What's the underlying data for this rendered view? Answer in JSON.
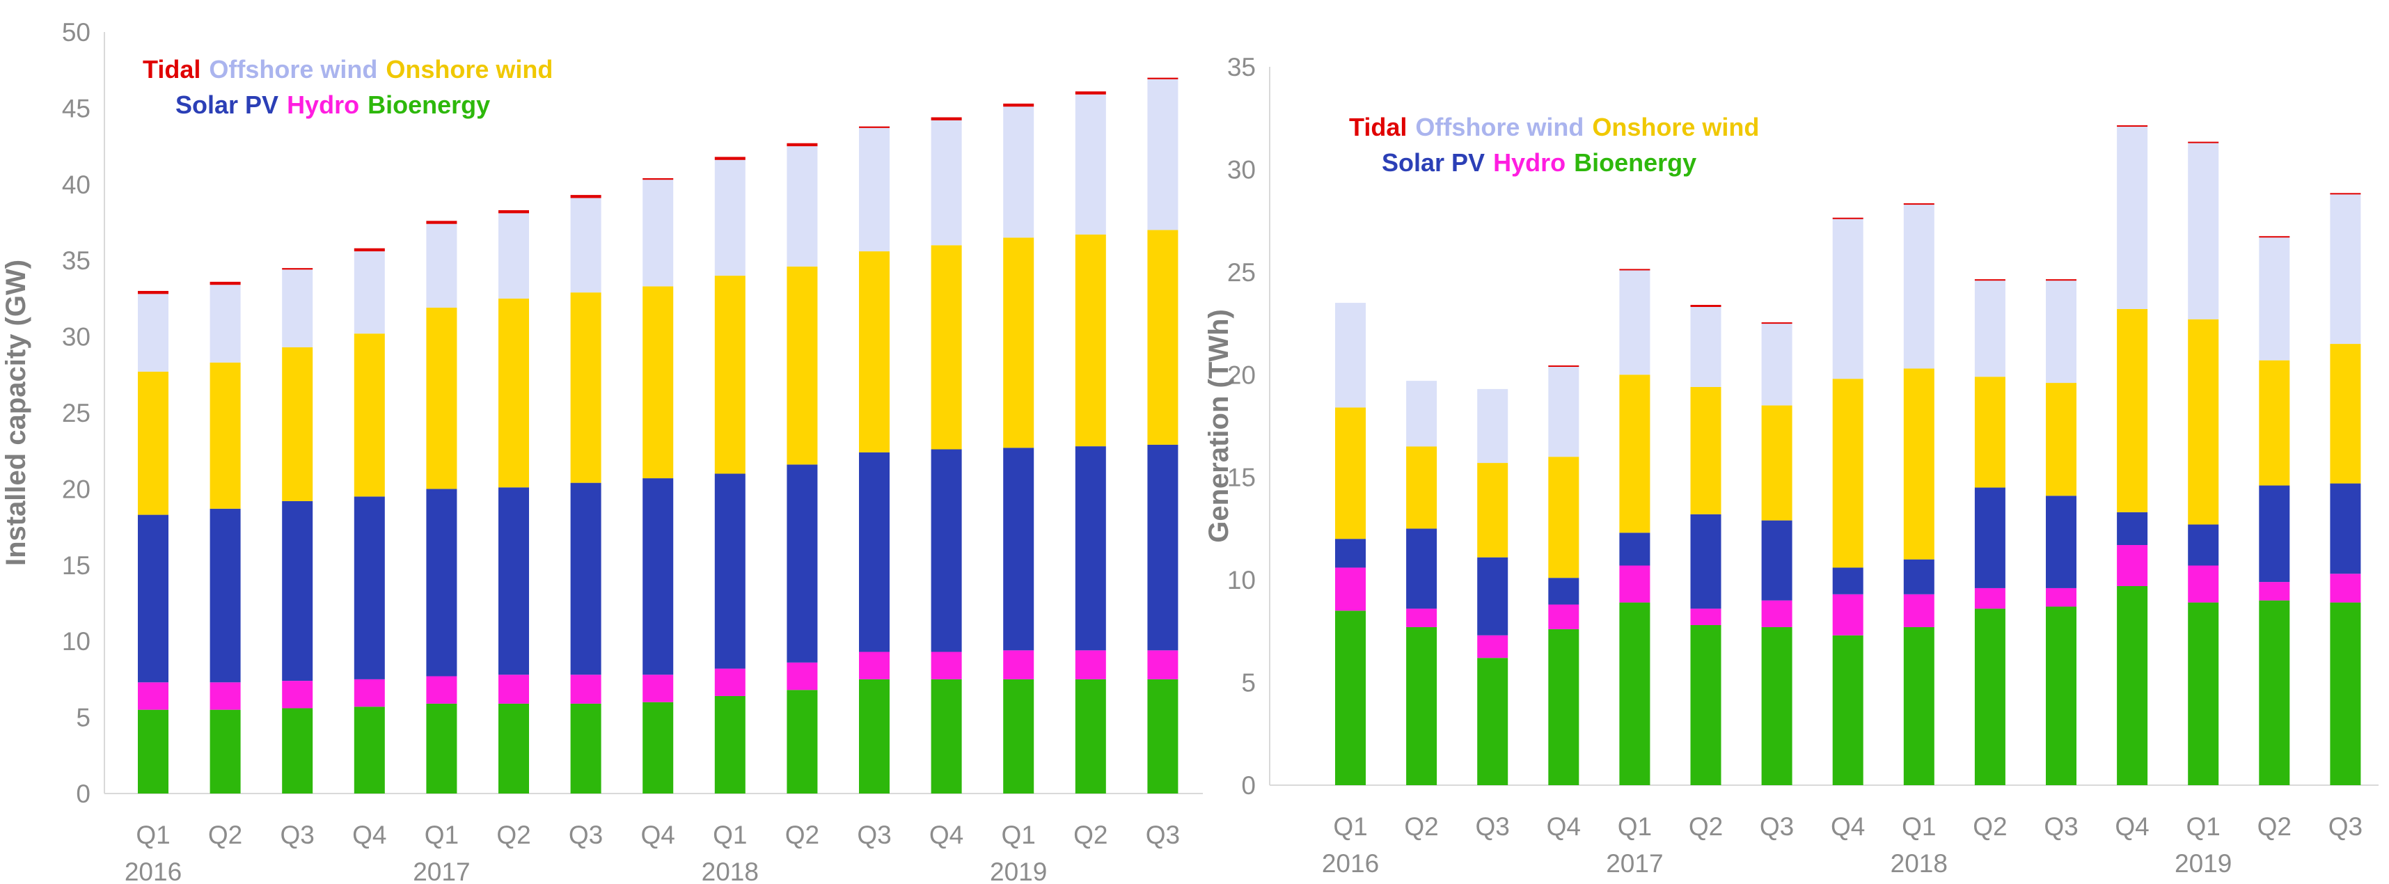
{
  "chart_data": [
    {
      "type": "bar",
      "stacked": true,
      "title": "",
      "xlabel": "",
      "ylabel": "Installed capacity (GW)",
      "ylim": [
        0,
        50
      ],
      "yticks": [
        0,
        5,
        10,
        15,
        20,
        25,
        30,
        35,
        40,
        45,
        50
      ],
      "grid": false,
      "legend_position": "top-left",
      "categories": [
        "Q1",
        "Q2",
        "Q3",
        "Q4",
        "Q1",
        "Q2",
        "Q3",
        "Q4",
        "Q1",
        "Q2",
        "Q3",
        "Q4",
        "Q1",
        "Q2",
        "Q3"
      ],
      "years": [
        {
          "label": "2016",
          "index": 0
        },
        {
          "label": "2017",
          "index": 4
        },
        {
          "label": "2018",
          "index": 8
        },
        {
          "label": "2019",
          "index": 12
        }
      ],
      "series": [
        {
          "name": "Bioenergy",
          "color": "#2db80b",
          "values": [
            5.5,
            5.5,
            5.6,
            5.7,
            5.9,
            5.9,
            5.9,
            6.0,
            6.4,
            6.8,
            7.5,
            7.5,
            7.5,
            7.5,
            7.5
          ]
        },
        {
          "name": "Hydro",
          "color": "#ff1de0",
          "values": [
            1.8,
            1.8,
            1.8,
            1.8,
            1.8,
            1.9,
            1.9,
            1.8,
            1.8,
            1.8,
            1.8,
            1.8,
            1.9,
            1.9,
            1.9
          ]
        },
        {
          "name": "Solar PV",
          "color": "#2b3fb6",
          "values": [
            11.0,
            11.4,
            11.8,
            12.0,
            12.3,
            12.3,
            12.6,
            12.9,
            12.8,
            13.0,
            13.1,
            13.3,
            13.3,
            13.4,
            13.5
          ]
        },
        {
          "name": "Onshore wind",
          "color": "#ffd500",
          "values": [
            9.4,
            9.6,
            10.1,
            10.7,
            11.9,
            12.4,
            12.5,
            12.6,
            13.0,
            13.0,
            13.2,
            13.4,
            13.8,
            13.9,
            14.1
          ]
        },
        {
          "name": "Offshore wind",
          "color": "#dae0f8",
          "values": [
            5.1,
            5.1,
            5.1,
            5.4,
            5.5,
            5.6,
            6.2,
            7.0,
            7.6,
            7.9,
            8.1,
            8.2,
            8.6,
            9.2,
            9.9
          ]
        },
        {
          "name": "Tidal",
          "color": "#e00000",
          "values": [
            0.2,
            0.2,
            0.1,
            0.2,
            0.2,
            0.2,
            0.2,
            0.1,
            0.2,
            0.2,
            0.1,
            0.2,
            0.2,
            0.2,
            0.1
          ]
        }
      ]
    },
    {
      "type": "bar",
      "stacked": true,
      "title": "",
      "xlabel": "",
      "ylabel": "Generation (TWh)",
      "ylim": [
        0,
        35
      ],
      "yticks": [
        0,
        5,
        10,
        15,
        20,
        25,
        30,
        35
      ],
      "grid": false,
      "legend_position": "top-left",
      "categories": [
        "Q1",
        "Q2",
        "Q3",
        "Q4",
        "Q1",
        "Q2",
        "Q3",
        "Q4",
        "Q1",
        "Q2",
        "Q3",
        "Q4",
        "Q1",
        "Q2",
        "Q3"
      ],
      "years": [
        {
          "label": "2016",
          "index": 0
        },
        {
          "label": "2017",
          "index": 4
        },
        {
          "label": "2018",
          "index": 8
        },
        {
          "label": "2019",
          "index": 12
        }
      ],
      "series": [
        {
          "name": "Bioenergy",
          "color": "#2db80b",
          "values": [
            8.5,
            7.7,
            6.2,
            7.6,
            8.9,
            7.8,
            7.7,
            7.3,
            7.7,
            8.6,
            8.7,
            9.7,
            8.9,
            9.0,
            8.9
          ]
        },
        {
          "name": "Hydro",
          "color": "#ff1de0",
          "values": [
            2.1,
            0.9,
            1.1,
            1.2,
            1.8,
            0.8,
            1.3,
            2.0,
            1.6,
            1.0,
            0.9,
            2.0,
            1.8,
            0.9,
            1.4
          ]
        },
        {
          "name": "Solar PV",
          "color": "#2b3fb6",
          "values": [
            1.4,
            3.9,
            3.8,
            1.3,
            1.6,
            4.6,
            3.9,
            1.3,
            1.7,
            4.9,
            4.5,
            1.6,
            2.0,
            4.7,
            4.4
          ]
        },
        {
          "name": "Onshore wind",
          "color": "#ffd500",
          "values": [
            6.4,
            4.0,
            4.6,
            5.9,
            7.7,
            6.2,
            5.6,
            9.2,
            9.3,
            5.4,
            5.5,
            9.9,
            10.0,
            6.1,
            6.8
          ]
        },
        {
          "name": "Offshore wind",
          "color": "#dae0f8",
          "values": [
            5.1,
            3.2,
            3.6,
            4.4,
            5.1,
            3.9,
            4.0,
            7.8,
            8.0,
            4.7,
            5.0,
            8.9,
            8.6,
            6.0,
            7.3
          ]
        },
        {
          "name": "Tidal",
          "color": "#e00000",
          "values": [
            0.0,
            0.0,
            0.0,
            0.05,
            0.05,
            0.1,
            0.05,
            0.05,
            0.05,
            0.05,
            0.05,
            0.05,
            0.05,
            0.05,
            0.05
          ]
        }
      ]
    }
  ],
  "legends": [
    {
      "row1": [
        {
          "label": "Tidal",
          "color": "#e00000"
        },
        {
          "label": "Offshore wind",
          "color": "#aab4ee"
        },
        {
          "label": "Onshore wind",
          "color": "#f0c800"
        }
      ],
      "row2": [
        {
          "label": "Solar PV",
          "color": "#2b3fb6"
        },
        {
          "label": "Hydro",
          "color": "#ff1de0"
        },
        {
          "label": "Bioenergy",
          "color": "#2db80b"
        }
      ]
    },
    {
      "row1": [
        {
          "label": "Tidal",
          "color": "#e00000"
        },
        {
          "label": "Offshore wind",
          "color": "#aab4ee"
        },
        {
          "label": "Onshore wind",
          "color": "#f0c800"
        }
      ],
      "row2": [
        {
          "label": "Solar PV",
          "color": "#2b3fb6"
        },
        {
          "label": "Hydro",
          "color": "#ff1de0"
        },
        {
          "label": "Bioenergy",
          "color": "#2db80b"
        }
      ]
    }
  ]
}
